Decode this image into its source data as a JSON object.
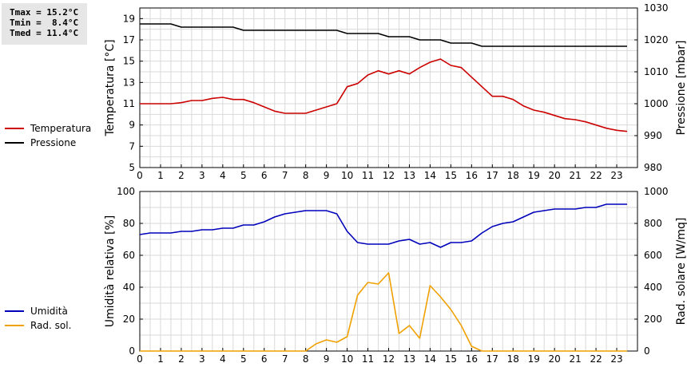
{
  "stats": {
    "tmax": "Tmax = 15.2°C",
    "tmin": "Tmin =  8.4°C",
    "tmed": "Tmed = 11.4°C"
  },
  "legend_top": [
    {
      "label": "Temperatura",
      "color": "#cc0000"
    },
    {
      "label": "Pressione",
      "color": "#000000"
    }
  ],
  "legend_bottom": [
    {
      "label": "Umidità",
      "color": "#0000bb"
    },
    {
      "label": "Rad. sol.",
      "color": "#f0a000"
    }
  ],
  "chart_data": [
    {
      "type": "line",
      "ylabel": "Temperatura [°C]",
      "ylabel_right": "Pressione [mbar]",
      "xlim": [
        0,
        24
      ],
      "ylim": [
        5,
        20
      ],
      "ylim_right": [
        980,
        1030
      ],
      "x_ticks": [
        "0",
        "1",
        "2",
        "3",
        "4",
        "5",
        "6",
        "7",
        "8",
        "9",
        "10",
        "11",
        "12",
        "13",
        "14",
        "15",
        "16",
        "17",
        "18",
        "19",
        "20",
        "21",
        "22",
        "23"
      ],
      "y_ticks": [
        "5",
        "7",
        "9",
        "11",
        "13",
        "15",
        "17",
        "19"
      ],
      "y_ticks_right": [
        "980",
        "990",
        "1000",
        "1010",
        "1020",
        "1030"
      ],
      "grid": true,
      "series": [
        {
          "name": "Temperatura",
          "color": "#cc0000",
          "axis": "left",
          "x": [
            0,
            0.5,
            1,
            1.5,
            2,
            2.5,
            3,
            3.5,
            4,
            4.5,
            5,
            5.5,
            6,
            6.5,
            7,
            7.5,
            8,
            8.5,
            9,
            9.5,
            10,
            10.5,
            11,
            11.5,
            12,
            12.5,
            13,
            13.5,
            14,
            14.5,
            15,
            15.5,
            16,
            16.5,
            17,
            17.5,
            18,
            18.5,
            19,
            19.5,
            20,
            20.5,
            21,
            21.5,
            22,
            22.5,
            23,
            23.5
          ],
          "values": [
            11.0,
            11.0,
            11.0,
            11.0,
            11.1,
            11.3,
            11.3,
            11.5,
            11.6,
            11.4,
            11.4,
            11.1,
            10.7,
            10.3,
            10.1,
            10.1,
            10.1,
            10.4,
            10.7,
            11.0,
            12.6,
            12.9,
            13.7,
            14.1,
            13.8,
            14.1,
            13.8,
            14.4,
            14.9,
            15.2,
            14.6,
            14.4,
            13.5,
            12.6,
            11.7,
            11.7,
            11.4,
            10.8,
            10.4,
            10.2,
            9.9,
            9.6,
            9.5,
            9.3,
            9.0,
            8.7,
            8.5,
            8.4
          ]
        },
        {
          "name": "Pressione",
          "color": "#000000",
          "axis": "right",
          "x": [
            0,
            0.5,
            1,
            1.5,
            2,
            2.5,
            3,
            3.5,
            4,
            4.5,
            5,
            5.5,
            6,
            6.5,
            7,
            7.5,
            8,
            8.5,
            9,
            9.5,
            10,
            10.5,
            11,
            11.5,
            12,
            12.5,
            13,
            13.5,
            14,
            14.5,
            15,
            15.5,
            16,
            16.5,
            17,
            17.5,
            18,
            18.5,
            19,
            19.5,
            20,
            20.5,
            21,
            21.5,
            22,
            22.5,
            23,
            23.5
          ],
          "values": [
            1025,
            1025,
            1025,
            1025,
            1024,
            1024,
            1024,
            1024,
            1024,
            1024,
            1023,
            1023,
            1023,
            1023,
            1023,
            1023,
            1023,
            1023,
            1023,
            1023,
            1022,
            1022,
            1022,
            1022,
            1021,
            1021,
            1021,
            1020,
            1020,
            1020,
            1019,
            1019,
            1019,
            1018,
            1018,
            1018,
            1018,
            1018,
            1018,
            1018,
            1018,
            1018,
            1018,
            1018,
            1018,
            1018,
            1018,
            1018
          ]
        }
      ]
    },
    {
      "type": "line",
      "ylabel": "Umidità relativa [%]",
      "ylabel_right": "Rad. solare [W/mq]",
      "xlim": [
        0,
        24
      ],
      "ylim": [
        0,
        100
      ],
      "ylim_right": [
        0,
        1000
      ],
      "x_ticks": [
        "0",
        "1",
        "2",
        "3",
        "4",
        "5",
        "6",
        "7",
        "8",
        "9",
        "10",
        "11",
        "12",
        "13",
        "14",
        "15",
        "16",
        "17",
        "18",
        "19",
        "20",
        "21",
        "22",
        "23"
      ],
      "y_ticks": [
        "0",
        "20",
        "40",
        "60",
        "80",
        "100"
      ],
      "y_ticks_right": [
        "0",
        "200",
        "400",
        "600",
        "800",
        "1000"
      ],
      "grid": true,
      "series": [
        {
          "name": "Umidità",
          "color": "#0000bb",
          "axis": "left",
          "x": [
            0,
            0.5,
            1,
            1.5,
            2,
            2.5,
            3,
            3.5,
            4,
            4.5,
            5,
            5.5,
            6,
            6.5,
            7,
            7.5,
            8,
            8.5,
            9,
            9.5,
            10,
            10.5,
            11,
            11.5,
            12,
            12.5,
            13,
            13.5,
            14,
            14.5,
            15,
            15.5,
            16,
            16.5,
            17,
            17.5,
            18,
            18.5,
            19,
            19.5,
            20,
            20.5,
            21,
            21.5,
            22,
            22.5,
            23,
            23.5
          ],
          "values": [
            73,
            74,
            74,
            74,
            75,
            75,
            76,
            76,
            77,
            77,
            79,
            79,
            81,
            84,
            86,
            87,
            88,
            88,
            88,
            86,
            75,
            68,
            67,
            67,
            67,
            69,
            70,
            67,
            68,
            65,
            68,
            68,
            69,
            74,
            78,
            80,
            81,
            84,
            87,
            88,
            89,
            89,
            89,
            90,
            90,
            92,
            92,
            92
          ]
        },
        {
          "name": "Rad. sol.",
          "color": "#f0a000",
          "axis": "right",
          "x": [
            0,
            0.5,
            1,
            1.5,
            2,
            2.5,
            3,
            3.5,
            4,
            4.5,
            5,
            5.5,
            6,
            6.5,
            7,
            7.5,
            8,
            8.5,
            9,
            9.5,
            10,
            10.5,
            11,
            11.5,
            12,
            12.5,
            13,
            13.5,
            14,
            14.5,
            15,
            15.5,
            16,
            16.5,
            17,
            17.5,
            18,
            18.5,
            19,
            19.5,
            20,
            20.5,
            21,
            21.5,
            22,
            22.5,
            23,
            23.5
          ],
          "values": [
            0,
            0,
            0,
            0,
            0,
            0,
            0,
            0,
            0,
            0,
            0,
            0,
            0,
            0,
            0,
            0,
            0,
            45,
            70,
            55,
            90,
            350,
            430,
            420,
            490,
            110,
            160,
            80,
            410,
            340,
            260,
            160,
            30,
            0,
            0,
            0,
            0,
            0,
            0,
            0,
            0,
            0,
            0,
            0,
            0,
            0,
            0,
            0
          ]
        }
      ]
    }
  ]
}
